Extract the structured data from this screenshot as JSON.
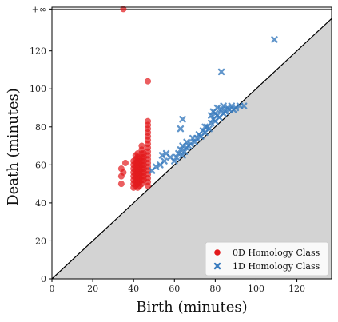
{
  "chart_data": {
    "type": "scatter",
    "title": "",
    "xlabel": "Birth (minutes)",
    "ylabel": "Death (minutes)",
    "xlim": [
      0,
      137
    ],
    "ylim": [
      0,
      143
    ],
    "xticks": [
      0,
      20,
      40,
      60,
      80,
      100,
      120
    ],
    "yticks": [
      0,
      20,
      40,
      60,
      80,
      100,
      120
    ],
    "infinity_label": "+∞",
    "infinity_value": 142,
    "diagonal": true,
    "grid": false,
    "legend_position": "bottom-right",
    "series": [
      {
        "name": "0D Homology Class",
        "marker": "circle",
        "color": "#e31a1c",
        "points": [
          [
            35,
            142
          ],
          [
            47,
            104
          ],
          [
            34,
            50
          ],
          [
            34,
            54
          ],
          [
            34,
            58
          ],
          [
            35,
            56
          ],
          [
            36,
            61
          ],
          [
            40,
            48
          ],
          [
            40,
            50
          ],
          [
            40,
            52
          ],
          [
            40,
            54
          ],
          [
            40,
            56
          ],
          [
            40,
            58
          ],
          [
            40,
            60
          ],
          [
            40,
            62
          ],
          [
            41,
            49
          ],
          [
            41,
            51
          ],
          [
            41,
            53
          ],
          [
            41,
            55
          ],
          [
            41,
            57
          ],
          [
            41,
            59
          ],
          [
            41,
            61
          ],
          [
            41,
            63
          ],
          [
            41,
            65
          ],
          [
            42,
            48
          ],
          [
            42,
            50
          ],
          [
            42,
            52
          ],
          [
            42,
            54
          ],
          [
            42,
            56
          ],
          [
            42,
            58
          ],
          [
            42,
            60
          ],
          [
            42,
            62
          ],
          [
            42,
            64
          ],
          [
            42,
            66
          ],
          [
            43,
            49
          ],
          [
            43,
            51
          ],
          [
            43,
            53
          ],
          [
            43,
            55
          ],
          [
            43,
            57
          ],
          [
            43,
            59
          ],
          [
            43,
            61
          ],
          [
            43,
            63
          ],
          [
            44,
            50
          ],
          [
            44,
            52
          ],
          [
            44,
            54
          ],
          [
            44,
            56
          ],
          [
            44,
            58
          ],
          [
            44,
            60
          ],
          [
            44,
            62
          ],
          [
            44,
            64
          ],
          [
            44,
            66
          ],
          [
            44,
            68
          ],
          [
            44,
            70
          ],
          [
            45,
            52
          ],
          [
            45,
            54
          ],
          [
            45,
            56
          ],
          [
            45,
            58
          ],
          [
            45,
            60
          ],
          [
            45,
            62
          ],
          [
            45,
            64
          ],
          [
            45,
            66
          ],
          [
            47,
            49
          ],
          [
            47,
            51
          ],
          [
            47,
            53
          ],
          [
            47,
            55
          ],
          [
            47,
            57
          ],
          [
            47,
            59
          ],
          [
            47,
            61
          ],
          [
            47,
            63
          ],
          [
            47,
            65
          ],
          [
            47,
            67
          ],
          [
            47,
            69
          ],
          [
            47,
            71
          ],
          [
            47,
            73
          ],
          [
            47,
            75
          ],
          [
            47,
            77
          ],
          [
            47,
            79
          ],
          [
            47,
            81
          ],
          [
            47,
            83
          ]
        ]
      },
      {
        "name": "1D Homology Class",
        "marker": "x",
        "color": "#3b7dbf",
        "points": [
          [
            109,
            126
          ],
          [
            83,
            109
          ],
          [
            64,
            84
          ],
          [
            75,
            80
          ],
          [
            63,
            79
          ],
          [
            49,
            57
          ],
          [
            51,
            59
          ],
          [
            53,
            60
          ],
          [
            55,
            62
          ],
          [
            54,
            65
          ],
          [
            56,
            66
          ],
          [
            58,
            64
          ],
          [
            60,
            62
          ],
          [
            61,
            64
          ],
          [
            62,
            66
          ],
          [
            63,
            68
          ],
          [
            64,
            65
          ],
          [
            64,
            70
          ],
          [
            65,
            67
          ],
          [
            66,
            69
          ],
          [
            66,
            72
          ],
          [
            67,
            70
          ],
          [
            68,
            71
          ],
          [
            69,
            74
          ],
          [
            70,
            72
          ],
          [
            71,
            74
          ],
          [
            72,
            76
          ],
          [
            73,
            75
          ],
          [
            74,
            78
          ],
          [
            75,
            77
          ],
          [
            76,
            80
          ],
          [
            77,
            79
          ],
          [
            78,
            82
          ],
          [
            78,
            86
          ],
          [
            79,
            84
          ],
          [
            79,
            88
          ],
          [
            80,
            83
          ],
          [
            80,
            87
          ],
          [
            81,
            86
          ],
          [
            81,
            90
          ],
          [
            82,
            85
          ],
          [
            83,
            89
          ],
          [
            84,
            87
          ],
          [
            84,
            91
          ],
          [
            85,
            88
          ],
          [
            86,
            90
          ],
          [
            87,
            89
          ],
          [
            88,
            91
          ],
          [
            89,
            89
          ],
          [
            90,
            90
          ],
          [
            92,
            91
          ],
          [
            94,
            91
          ]
        ]
      }
    ]
  }
}
